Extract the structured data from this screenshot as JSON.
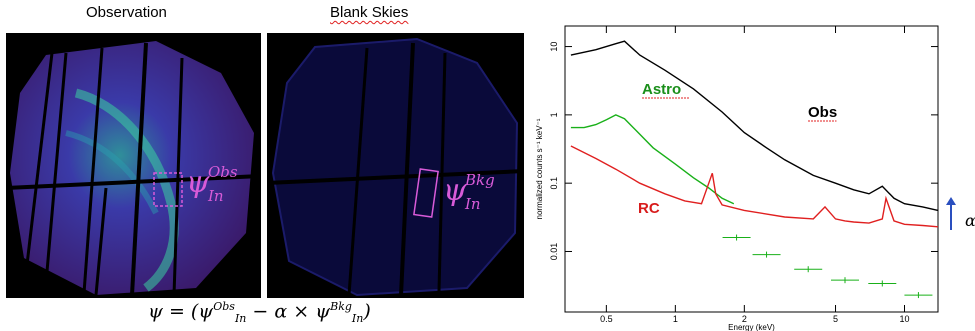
{
  "panels": {
    "observation_title": "Observation",
    "blank_title": "Blank Skies",
    "obs_symbol": {
      "base": "ψ",
      "sup": "Obs",
      "sub": "In"
    },
    "bkg_symbol": {
      "base": "ψ",
      "sup": "Bkg",
      "sub": "In"
    },
    "formula": {
      "lhs": "ψ = (ψ",
      "sup1": "Obs",
      "sub1": "In",
      "mid": " − α × ψ",
      "sup2": "Bkg",
      "sub2": "In",
      "end": ")"
    }
  },
  "chart_data": {
    "type": "line",
    "xlabel": "Energy (keV)",
    "ylabel": "normalized counts s⁻¹ keV⁻¹",
    "x_scale": "log",
    "y_scale": "log",
    "xlim": [
      0.33,
      14
    ],
    "ylim": [
      0.0013,
      20
    ],
    "x_ticks": [
      0.5,
      1,
      2,
      5,
      10
    ],
    "x_tick_labels": [
      "0.5",
      "1",
      "2",
      "5",
      "10"
    ],
    "y_ticks": [
      0.01,
      0.1,
      1,
      10
    ],
    "y_tick_labels": [
      "0.01",
      "0.1",
      "1",
      "10"
    ],
    "series": [
      {
        "name": "Obs",
        "color": "#000000",
        "x": [
          0.35,
          0.45,
          0.55,
          0.6,
          0.7,
          0.9,
          1.2,
          1.6,
          2.0,
          2.5,
          3.0,
          4.0,
          5.0,
          6.0,
          7.0,
          8.0,
          9.0,
          10.0,
          12.0,
          14.0
        ],
        "y": [
          7.5,
          9,
          11,
          12,
          7.5,
          4.5,
          2.4,
          1.1,
          0.55,
          0.33,
          0.22,
          0.13,
          0.1,
          0.08,
          0.07,
          0.09,
          0.06,
          0.05,
          0.045,
          0.04
        ]
      },
      {
        "name": "Astro",
        "color": "#19b019",
        "x": [
          0.35,
          0.4,
          0.45,
          0.5,
          0.55,
          0.6,
          0.7,
          0.8,
          1.0,
          1.2,
          1.4,
          1.6,
          1.8
        ],
        "y": [
          0.65,
          0.65,
          0.72,
          0.85,
          1.0,
          0.88,
          0.52,
          0.33,
          0.19,
          0.12,
          0.085,
          0.06,
          0.05
        ],
        "err_x": [
          1.85,
          2.5,
          3.8,
          5.5,
          8.0,
          11.5
        ],
        "err_y": [
          0.016,
          0.009,
          0.0055,
          0.0038,
          0.0034,
          0.0023
        ]
      },
      {
        "name": "RC",
        "color": "#e02020",
        "x": [
          0.35,
          0.45,
          0.55,
          0.7,
          0.9,
          1.1,
          1.3,
          1.45,
          1.5,
          1.6,
          2.0,
          3.0,
          4.0,
          4.5,
          5.0,
          5.5,
          6.0,
          7.0,
          8.0,
          8.3,
          9.0,
          10.0,
          12.0,
          14.0
        ],
        "y": [
          0.35,
          0.23,
          0.16,
          0.1,
          0.07,
          0.055,
          0.05,
          0.14,
          0.07,
          0.048,
          0.04,
          0.032,
          0.03,
          0.045,
          0.03,
          0.028,
          0.027,
          0.026,
          0.03,
          0.06,
          0.028,
          0.025,
          0.024,
          0.023
        ]
      }
    ],
    "annotations": [
      {
        "text": "Astro",
        "color": "#1a8f1a"
      },
      {
        "text": "Obs",
        "color": "#000000"
      },
      {
        "text": "RC",
        "color": "#d81c1c"
      },
      {
        "text": "α",
        "color": "#000000"
      }
    ]
  }
}
